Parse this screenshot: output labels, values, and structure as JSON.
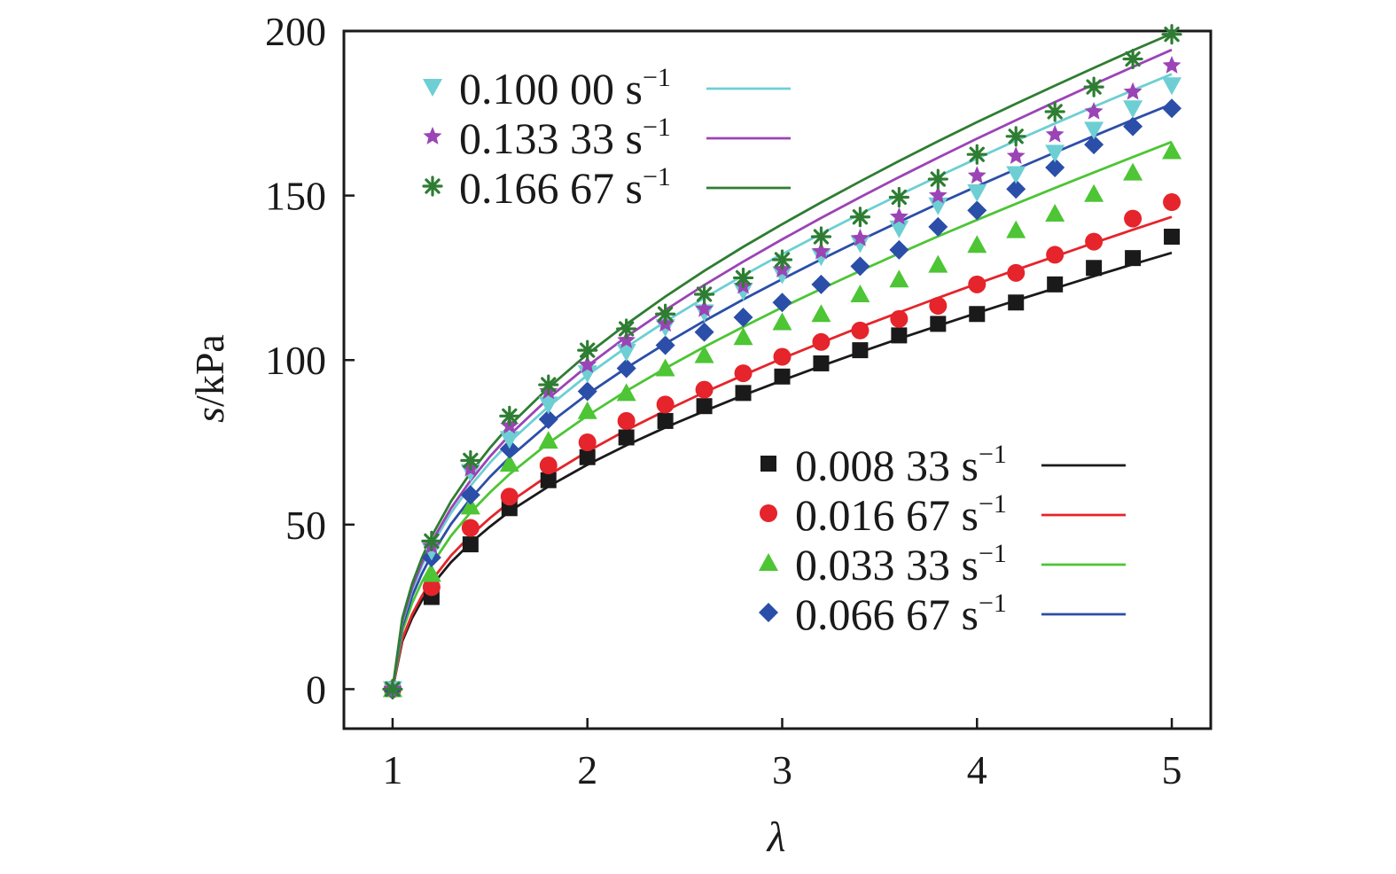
{
  "chart_data": {
    "type": "scatter",
    "xlabel": "λ",
    "ylabel_italic": "s",
    "ylabel_unit": "/kPa",
    "xlim": [
      0.75,
      5.2
    ],
    "ylim": [
      -12,
      200
    ],
    "xticks": [
      1,
      2,
      3,
      4,
      5
    ],
    "yticks": [
      0,
      50,
      100,
      150,
      200
    ],
    "x": [
      1.0,
      1.2,
      1.4,
      1.6,
      1.8,
      2.0,
      2.2,
      2.4,
      2.6,
      2.8,
      3.0,
      3.2,
      3.4,
      3.6,
      3.8,
      4.0,
      4.2,
      4.4,
      4.6,
      4.8,
      5.0
    ],
    "fit_x": [
      1.0,
      1.05,
      1.1,
      1.15,
      1.2,
      1.3,
      1.4,
      1.5,
      1.6,
      1.8,
      2.0,
      2.2,
      2.4,
      2.6,
      2.8,
      3.0,
      3.2,
      3.4,
      3.6,
      3.8,
      4.0,
      4.2,
      4.4,
      4.6,
      4.8,
      5.0
    ],
    "series": [
      {
        "name": "0.008 33",
        "color": "#1a1a1a",
        "marker": "square",
        "values": [
          0,
          28,
          44,
          55,
          63.5,
          70.5,
          76.5,
          81.5,
          86,
          90,
          95,
          99,
          103,
          107.5,
          111,
          114,
          117.5,
          123,
          128,
          131,
          137.5
        ],
        "fit": [
          0,
          14.6,
          21.6,
          26.9,
          31.4,
          38.6,
          44.4,
          49.4,
          54,
          61.6,
          68.2,
          74.1,
          79.5,
          84.5,
          89.3,
          93.8,
          98.2,
          102.4,
          106.5,
          110.4,
          114.3,
          118.1,
          121.8,
          125.5,
          129.1,
          132.6
        ]
      },
      {
        "name": "0.016 67",
        "color": "#e5242b",
        "marker": "circle",
        "values": [
          0,
          31,
          49,
          58.5,
          68,
          75,
          81.5,
          86.5,
          91,
          96,
          101,
          105.5,
          109,
          112.5,
          116.5,
          123,
          126.5,
          132,
          136,
          143,
          148
        ],
        "fit": [
          0,
          15.3,
          22.7,
          28.3,
          33,
          40.6,
          46.7,
          52,
          56.8,
          65,
          72.2,
          78.7,
          84.6,
          90.2,
          95.4,
          100.5,
          105.3,
          110,
          114.5,
          118.9,
          123.2,
          127.4,
          131.5,
          135.6,
          139.6,
          143.5
        ]
      },
      {
        "name": "0.033 33",
        "color": "#4dc535",
        "marker": "triangle-up",
        "values": [
          0,
          35,
          55.5,
          68.5,
          75.5,
          84.5,
          90,
          97.5,
          101.5,
          107,
          111.5,
          114,
          120,
          124.5,
          129,
          135,
          139.5,
          144.5,
          150.5,
          157,
          163.5
        ],
        "fit": [
          0,
          17.6,
          26.1,
          32.5,
          37.8,
          46.6,
          53.7,
          59.8,
          65.3,
          74.8,
          83.1,
          90.6,
          97.5,
          104,
          110.1,
          116,
          121.6,
          127.1,
          132.4,
          137.6,
          142.6,
          147.5,
          152.3,
          157,
          161.7,
          166.3
        ]
      },
      {
        "name": "0.066 67",
        "color": "#2b4ea8",
        "marker": "diamond",
        "values": [
          0,
          40,
          59,
          73,
          82,
          90.5,
          97.5,
          104.5,
          108.5,
          113,
          117.5,
          123,
          128.5,
          133.5,
          140.5,
          145.5,
          152,
          158.5,
          165.5,
          171,
          176.5
        ],
        "fit": [
          0,
          19,
          28.2,
          35,
          40.8,
          50.2,
          57.9,
          64.5,
          70.4,
          80.6,
          89.6,
          97.6,
          105,
          111.9,
          118.4,
          124.6,
          130.6,
          136.4,
          142,
          147.5,
          152.8,
          158,
          163.1,
          168.1,
          173,
          177.8
        ]
      },
      {
        "name": "0.100 00",
        "color": "#6dcfd3",
        "marker": "triangle-down",
        "values": [
          0,
          42,
          66,
          76,
          86.5,
          96,
          102.5,
          110,
          114.5,
          121,
          126,
          131.5,
          135.5,
          140,
          147,
          151,
          156.5,
          163,
          170,
          176.5,
          183.5
        ],
        "fit": [
          0,
          20.3,
          30.1,
          37.4,
          43.6,
          53.6,
          61.8,
          68.8,
          75.1,
          85.9,
          95.4,
          103.9,
          111.7,
          118.9,
          125.7,
          132.2,
          138.4,
          144.4,
          150.2,
          155.8,
          161.3,
          166.7,
          171.9,
          177,
          182,
          186.9
        ]
      },
      {
        "name": "0.133 33",
        "color": "#9b44b6",
        "marker": "star",
        "values": [
          0,
          43.5,
          67,
          80,
          90.5,
          98.5,
          106,
          111,
          115.5,
          122.5,
          127.5,
          133,
          137,
          143.5,
          150,
          156,
          162,
          168.5,
          175.5,
          181.5,
          189.5
        ],
        "fit": [
          0,
          20.8,
          30.8,
          38.3,
          44.7,
          55,
          63.4,
          70.7,
          77.2,
          88.4,
          98.2,
          107.1,
          115.2,
          122.8,
          129.9,
          136.7,
          143.2,
          149.5,
          155.6,
          161.5,
          167.3,
          172.9,
          178.4,
          183.8,
          189.1,
          194.3
        ]
      },
      {
        "name": "0.166 67",
        "color": "#2e7d32",
        "marker": "asterisk",
        "values": [
          0,
          45,
          69.5,
          83,
          92.5,
          103,
          109.5,
          114,
          120,
          125,
          130.5,
          137.5,
          143.5,
          149.5,
          155,
          162.5,
          168,
          175.5,
          183,
          191.5,
          199
        ],
        "fit": [
          0,
          21.6,
          32,
          39.8,
          46.4,
          57.1,
          65.8,
          73.3,
          80.1,
          91.6,
          101.8,
          110.9,
          119.3,
          127.1,
          134.4,
          141.3,
          147.9,
          154.3,
          160.5,
          166.5,
          172.3,
          177.9,
          183.4,
          188.8,
          194.1,
          199.2
        ]
      }
    ],
    "legend_top": [
      "0.100 00",
      "0.133 33",
      "0.166 67"
    ],
    "legend_bottom": [
      "0.008 33",
      "0.016 67",
      "0.033 33",
      "0.066 67"
    ],
    "legend_unit": "s",
    "legend_unit_sup": "−1",
    "legend_placement": [
      "top-left",
      "bottom-right"
    ]
  }
}
